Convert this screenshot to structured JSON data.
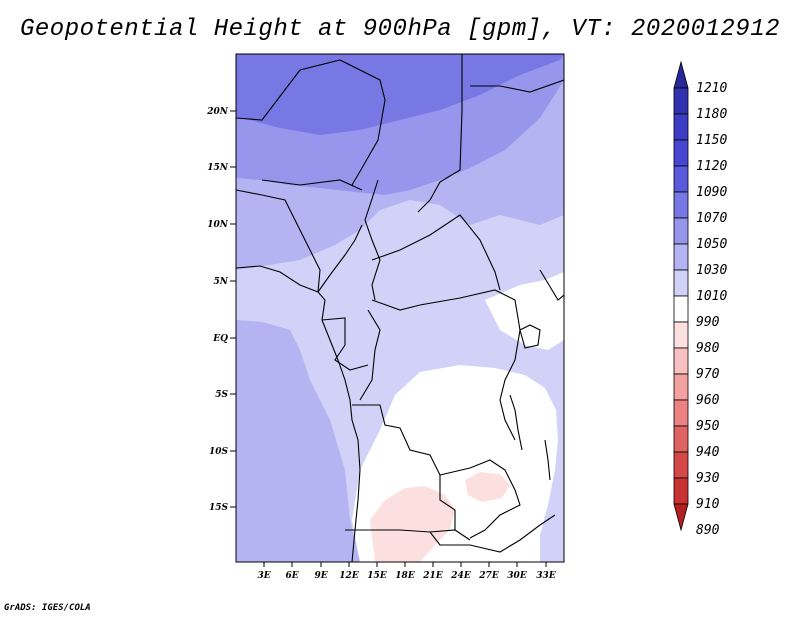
{
  "title": "Geopotential Height at 900hPa [gpm], VT: 2020012912",
  "footer": "GrADS: IGES/COLA",
  "map": {
    "lat_labels": [
      "20N",
      "15N",
      "10N",
      "5N",
      "EQ",
      "5S",
      "10S",
      "15S"
    ],
    "lon_labels": [
      "3E",
      "6E",
      "9E",
      "12E",
      "15E",
      "18E",
      "21E",
      "24E",
      "27E",
      "30E",
      "33E"
    ],
    "variable": "Geopotential Height",
    "level": "900hPa",
    "units": "gpm",
    "valid_time": "2020012912"
  },
  "colorbar": {
    "labels": [
      "1210",
      "1180",
      "1150",
      "1120",
      "1090",
      "1070",
      "1050",
      "1030",
      "1010",
      "990",
      "980",
      "970",
      "960",
      "950",
      "940",
      "930",
      "910",
      "890"
    ],
    "colors": [
      "#28289a",
      "#3232b0",
      "#3c3cc4",
      "#4646d2",
      "#5a5adc",
      "#7878e4",
      "#9696ec",
      "#b4b4f2",
      "#d2d2f8",
      "#ffffff",
      "#fce0e0",
      "#f8c0c0",
      "#f2a0a0",
      "#ec8282",
      "#e06464",
      "#d44848",
      "#c83232",
      "#b42020"
    ],
    "palette": {
      "c1030": "#b4b4f2",
      "c1050": "#9696ec",
      "c1070": "#7878e4",
      "c1010": "#d2d2f8",
      "c990": "#ffffff",
      "c980": "#fce0e0"
    }
  }
}
